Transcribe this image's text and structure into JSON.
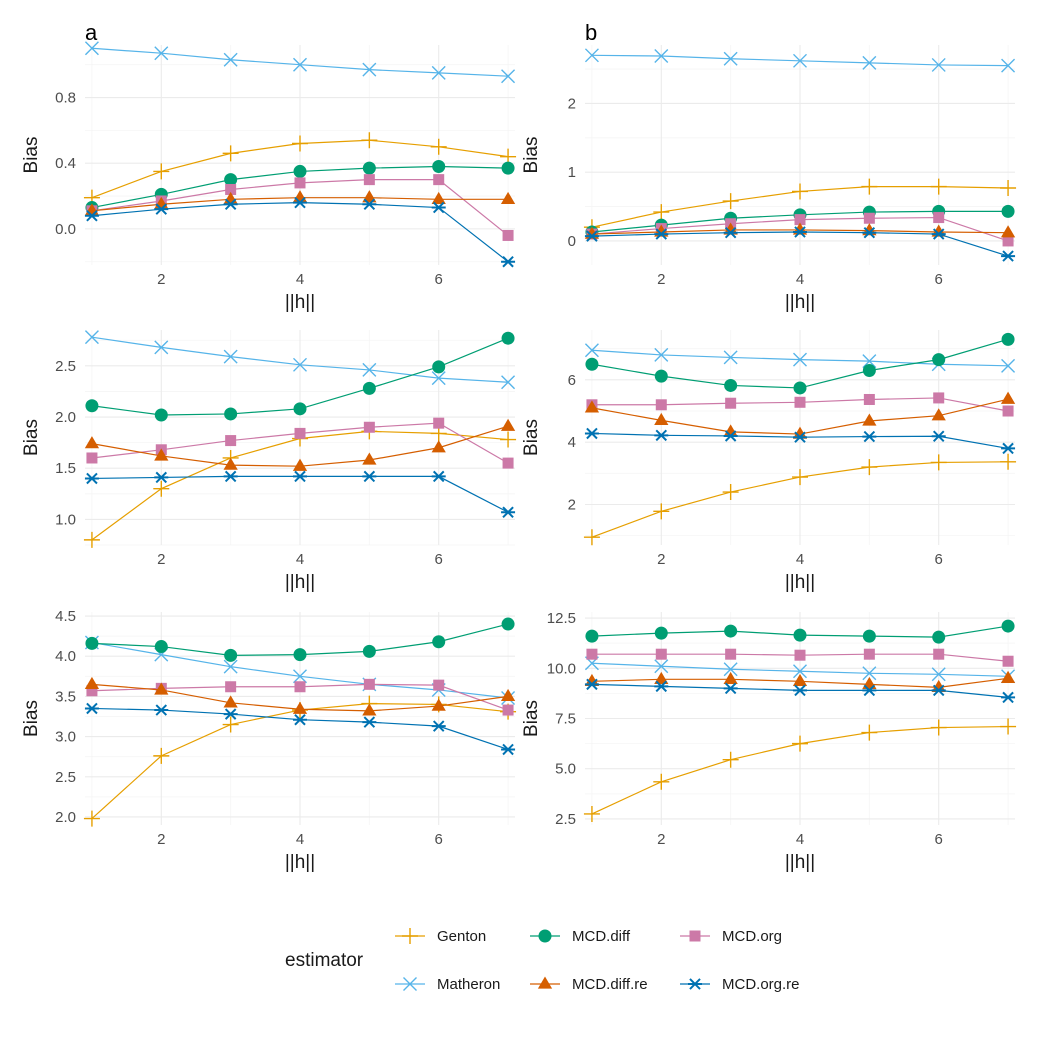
{
  "legend": {
    "title": "estimator",
    "entries": [
      {
        "name": "Genton",
        "color": "#E69F00",
        "shape": "plus"
      },
      {
        "name": "MCD.diff",
        "color": "#009E73",
        "shape": "circle"
      },
      {
        "name": "MCD.org",
        "color": "#CC79A7",
        "shape": "square"
      },
      {
        "name": "Matheron",
        "color": "#56B4E9",
        "shape": "cross"
      },
      {
        "name": "MCD.diff.re",
        "color": "#D55E00",
        "shape": "triangle"
      },
      {
        "name": "MCD.org.re",
        "color": "#0072B2",
        "shape": "asterisk"
      }
    ]
  },
  "chart_data": [
    {
      "type": "line",
      "tag": "a",
      "title": "",
      "xlabel": "||h||",
      "ylabel": "Bias",
      "x": [
        1,
        2,
        3,
        4,
        5,
        6,
        7
      ],
      "xlim": [
        0.9,
        7.1
      ],
      "ylim": [
        -0.22,
        1.12
      ],
      "xticks": [
        2,
        4,
        6
      ],
      "yticks": [
        0.0,
        0.4,
        0.8
      ],
      "xtick_labels": [
        "2",
        "4",
        "6"
      ],
      "ytick_labels": [
        "0.0",
        "0.4",
        "0.8"
      ],
      "series": [
        {
          "name": "Matheron",
          "values": [
            1.1,
            1.07,
            1.03,
            1.0,
            0.97,
            0.95,
            0.93
          ]
        },
        {
          "name": "Genton",
          "values": [
            0.19,
            0.35,
            0.46,
            0.52,
            0.54,
            0.5,
            0.44
          ]
        },
        {
          "name": "MCD.diff",
          "values": [
            0.13,
            0.21,
            0.3,
            0.35,
            0.37,
            0.38,
            0.37
          ]
        },
        {
          "name": "MCD.org",
          "values": [
            0.11,
            0.17,
            0.24,
            0.28,
            0.3,
            0.3,
            -0.04
          ]
        },
        {
          "name": "MCD.diff.re",
          "values": [
            0.11,
            0.15,
            0.18,
            0.19,
            0.19,
            0.18,
            0.18
          ]
        },
        {
          "name": "MCD.org.re",
          "values": [
            0.08,
            0.12,
            0.15,
            0.16,
            0.15,
            0.13,
            -0.2
          ]
        }
      ]
    },
    {
      "type": "line",
      "tag": "b",
      "title": "",
      "xlabel": "||h||",
      "ylabel": "Bias",
      "x": [
        1,
        2,
        3,
        4,
        5,
        6,
        7
      ],
      "xlim": [
        0.9,
        7.1
      ],
      "ylim": [
        -0.35,
        2.85
      ],
      "xticks": [
        2,
        4,
        6
      ],
      "yticks": [
        0,
        1,
        2
      ],
      "xtick_labels": [
        "2",
        "4",
        "6"
      ],
      "ytick_labels": [
        "0",
        "1",
        "2"
      ],
      "series": [
        {
          "name": "Matheron",
          "values": [
            2.7,
            2.69,
            2.65,
            2.62,
            2.59,
            2.56,
            2.55
          ]
        },
        {
          "name": "Genton",
          "values": [
            0.2,
            0.42,
            0.58,
            0.72,
            0.79,
            0.79,
            0.77
          ]
        },
        {
          "name": "MCD.diff",
          "values": [
            0.13,
            0.23,
            0.33,
            0.38,
            0.42,
            0.43,
            0.43
          ]
        },
        {
          "name": "MCD.org",
          "values": [
            0.1,
            0.18,
            0.25,
            0.31,
            0.33,
            0.34,
            0.0
          ]
        },
        {
          "name": "MCD.diff.re",
          "values": [
            0.1,
            0.13,
            0.16,
            0.16,
            0.15,
            0.13,
            0.12
          ]
        },
        {
          "name": "MCD.org.re",
          "values": [
            0.07,
            0.1,
            0.12,
            0.13,
            0.12,
            0.1,
            -0.22
          ]
        }
      ]
    },
    {
      "type": "line",
      "tag": "",
      "title": "",
      "xlabel": "||h||",
      "ylabel": "Bias",
      "x": [
        1,
        2,
        3,
        4,
        5,
        6,
        7
      ],
      "xlim": [
        0.9,
        7.1
      ],
      "ylim": [
        0.75,
        2.85
      ],
      "xticks": [
        2,
        4,
        6
      ],
      "yticks": [
        1.0,
        1.5,
        2.0,
        2.5
      ],
      "xtick_labels": [
        "2",
        "4",
        "6"
      ],
      "ytick_labels": [
        "1.0",
        "1.5",
        "2.0",
        "2.5"
      ],
      "series": [
        {
          "name": "Matheron",
          "values": [
            2.78,
            2.68,
            2.59,
            2.51,
            2.46,
            2.38,
            2.34
          ]
        },
        {
          "name": "Genton",
          "values": [
            0.8,
            1.3,
            1.6,
            1.79,
            1.86,
            1.84,
            1.78
          ]
        },
        {
          "name": "MCD.diff",
          "values": [
            2.11,
            2.02,
            2.03,
            2.08,
            2.28,
            2.49,
            2.77
          ]
        },
        {
          "name": "MCD.org",
          "values": [
            1.6,
            1.68,
            1.77,
            1.84,
            1.9,
            1.94,
            1.55
          ]
        },
        {
          "name": "MCD.diff.re",
          "values": [
            1.74,
            1.62,
            1.53,
            1.52,
            1.58,
            1.7,
            1.91
          ]
        },
        {
          "name": "MCD.org.re",
          "values": [
            1.4,
            1.41,
            1.42,
            1.42,
            1.42,
            1.42,
            1.07
          ]
        }
      ]
    },
    {
      "type": "line",
      "tag": "",
      "title": "",
      "xlabel": "||h||",
      "ylabel": "Bias",
      "x": [
        1,
        2,
        3,
        4,
        5,
        6,
        7
      ],
      "xlim": [
        0.9,
        7.1
      ],
      "ylim": [
        0.7,
        7.6
      ],
      "xticks": [
        2,
        4,
        6
      ],
      "yticks": [
        2,
        4,
        6
      ],
      "xtick_labels": [
        "2",
        "4",
        "6"
      ],
      "ytick_labels": [
        "2",
        "4",
        "6"
      ],
      "series": [
        {
          "name": "Matheron",
          "values": [
            6.95,
            6.8,
            6.72,
            6.65,
            6.6,
            6.5,
            6.45
          ]
        },
        {
          "name": "Genton",
          "values": [
            0.95,
            1.78,
            2.4,
            2.88,
            3.2,
            3.35,
            3.37
          ]
        },
        {
          "name": "MCD.diff",
          "values": [
            6.5,
            6.12,
            5.82,
            5.74,
            6.3,
            6.65,
            7.3
          ]
        },
        {
          "name": "MCD.org",
          "values": [
            5.2,
            5.2,
            5.25,
            5.28,
            5.37,
            5.42,
            5.0
          ]
        },
        {
          "name": "MCD.diff.re",
          "values": [
            5.1,
            4.7,
            4.33,
            4.26,
            4.68,
            4.85,
            5.38
          ]
        },
        {
          "name": "MCD.org.re",
          "values": [
            4.28,
            4.22,
            4.2,
            4.16,
            4.18,
            4.19,
            3.8
          ]
        }
      ]
    },
    {
      "type": "line",
      "tag": "",
      "title": "",
      "xlabel": "||h||",
      "ylabel": "Bias",
      "x": [
        1,
        2,
        3,
        4,
        5,
        6,
        7
      ],
      "xlim": [
        0.9,
        7.1
      ],
      "ylim": [
        1.9,
        4.55
      ],
      "xticks": [
        2,
        4,
        6
      ],
      "yticks": [
        2.0,
        2.5,
        3.0,
        3.5,
        4.0,
        4.5
      ],
      "xtick_labels": [
        "2",
        "4",
        "6"
      ],
      "ytick_labels": [
        "2.0",
        "2.5",
        "3.0",
        "3.5",
        "4.0",
        "4.5"
      ],
      "series": [
        {
          "name": "Matheron",
          "values": [
            4.17,
            4.02,
            3.87,
            3.75,
            3.65,
            3.58,
            3.48
          ]
        },
        {
          "name": "Genton",
          "values": [
            1.98,
            2.76,
            3.15,
            3.33,
            3.41,
            3.4,
            3.31
          ]
        },
        {
          "name": "MCD.diff",
          "values": [
            4.16,
            4.12,
            4.01,
            4.02,
            4.06,
            4.18,
            4.4
          ]
        },
        {
          "name": "MCD.org",
          "values": [
            3.57,
            3.6,
            3.62,
            3.62,
            3.65,
            3.64,
            3.33
          ]
        },
        {
          "name": "MCD.diff.re",
          "values": [
            3.65,
            3.58,
            3.42,
            3.34,
            3.32,
            3.38,
            3.5
          ]
        },
        {
          "name": "MCD.org.re",
          "values": [
            3.35,
            3.33,
            3.28,
            3.21,
            3.18,
            3.13,
            2.84
          ]
        }
      ]
    },
    {
      "type": "line",
      "tag": "",
      "title": "",
      "xlabel": "||h||",
      "ylabel": "Bias",
      "x": [
        1,
        2,
        3,
        4,
        5,
        6,
        7
      ],
      "xlim": [
        0.9,
        7.1
      ],
      "ylim": [
        2.2,
        12.8
      ],
      "xticks": [
        2,
        4,
        6
      ],
      "yticks": [
        2.5,
        5.0,
        7.5,
        10.0,
        12.5
      ],
      "xtick_labels": [
        "2",
        "4",
        "6"
      ],
      "ytick_labels": [
        "2.5",
        "5.0",
        "7.5",
        "10.0",
        "12.5"
      ],
      "series": [
        {
          "name": "Matheron",
          "values": [
            10.25,
            10.1,
            9.95,
            9.85,
            9.75,
            9.7,
            9.6
          ]
        },
        {
          "name": "Genton",
          "values": [
            2.75,
            4.35,
            5.45,
            6.25,
            6.8,
            7.05,
            7.1
          ]
        },
        {
          "name": "MCD.diff",
          "values": [
            11.6,
            11.75,
            11.85,
            11.65,
            11.6,
            11.55,
            12.1
          ]
        },
        {
          "name": "MCD.org",
          "values": [
            10.7,
            10.7,
            10.7,
            10.65,
            10.7,
            10.7,
            10.35
          ]
        },
        {
          "name": "MCD.diff.re",
          "values": [
            9.35,
            9.45,
            9.45,
            9.35,
            9.2,
            9.05,
            9.5
          ]
        },
        {
          "name": "MCD.org.re",
          "values": [
            9.2,
            9.1,
            9.0,
            8.9,
            8.9,
            8.9,
            8.55
          ]
        }
      ]
    }
  ]
}
